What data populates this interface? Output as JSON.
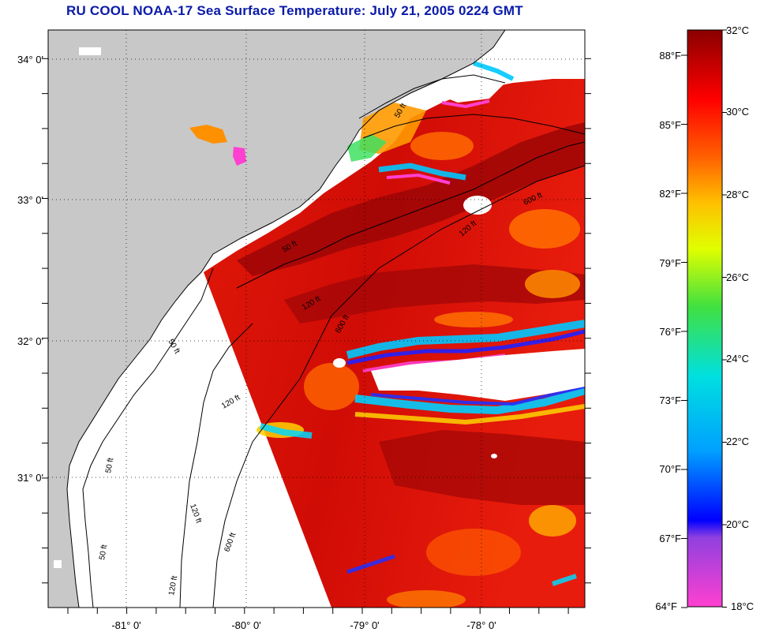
{
  "title": "RU COOL  NOAA-17  Sea Surface Temperature:  July 21, 2005 0224 GMT",
  "map": {
    "lon_labels": [
      "-81° 0'",
      "-80° 0'",
      "-79° 0'",
      "-78° 0'"
    ],
    "lat_labels": [
      "34° 0'",
      "33° 0'",
      "32° 0'",
      "31° 0'"
    ],
    "contour_labels": [
      "50 ft",
      "50 ft",
      "50 ft",
      "120 ft",
      "120 ft",
      "120 ft",
      "600 ft",
      "600 ft",
      "120 ft",
      "50 ft",
      "600 ft",
      "120 ft",
      "50 ft"
    ],
    "colors": {
      "land": "#c8c8c8",
      "cloud": "#ffffff",
      "frame": "#000000"
    }
  },
  "colorbar": {
    "fahrenheit_labels": [
      "88°F",
      "85°F",
      "82°F",
      "79°F",
      "76°F",
      "73°F",
      "70°F",
      "67°F",
      "64°F"
    ],
    "celsius_labels": [
      "32°C",
      "30°C",
      "28°C",
      "26°C",
      "24°C",
      "22°C",
      "20°C",
      "18°C"
    ]
  }
}
